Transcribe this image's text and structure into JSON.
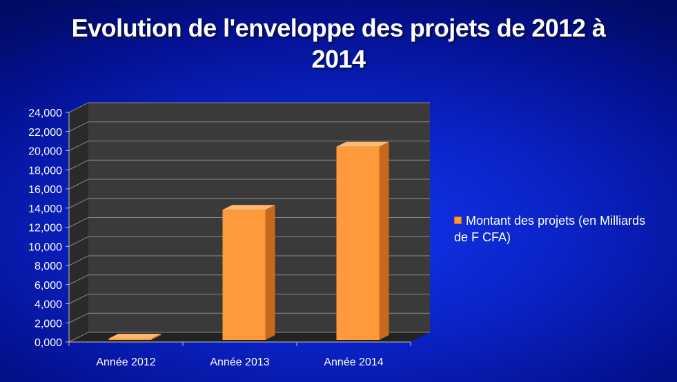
{
  "chart_data": {
    "type": "bar",
    "title": "Evolution de l'enveloppe des projets de 2012 à 2014",
    "title_lines": [
      "Evolution de l'enveloppe des projets de 2012 à",
      "2014"
    ],
    "categories": [
      "Année 2012",
      "Année 2013",
      "Année 2014"
    ],
    "series": [
      {
        "name": "Montant des projets (en Milliards de F CFA)",
        "values": [
          50,
          13600,
          20200
        ],
        "color": "#ff9a3c"
      }
    ],
    "ylim": [
      0,
      24000
    ],
    "y_ticks": [
      0,
      2000,
      4000,
      6000,
      8000,
      10000,
      12000,
      14000,
      16000,
      18000,
      20000,
      22000,
      24000
    ],
    "y_tick_labels": [
      "0,000",
      "2,000",
      "4,000",
      "6,000",
      "8,000",
      "10,000",
      "12,000",
      "14,000",
      "16,000",
      "18,000",
      "20,000",
      "22,000",
      "24,000"
    ],
    "grid": true,
    "legend": "right",
    "legend_text_lines": [
      "Montant des projets (en Milliards",
      "de F CFA)"
    ],
    "xlabel": "",
    "ylabel": "",
    "style": "3d-column",
    "colors": {
      "bar_front": "#ff9a3c",
      "bar_side": "#c7691c",
      "bar_top": "#ffb870",
      "plot_back": "#3a3a3a",
      "plot_wall": "#2a2a2a",
      "plot_floor": "#222222",
      "gridline": "#8a8a8a"
    }
  }
}
